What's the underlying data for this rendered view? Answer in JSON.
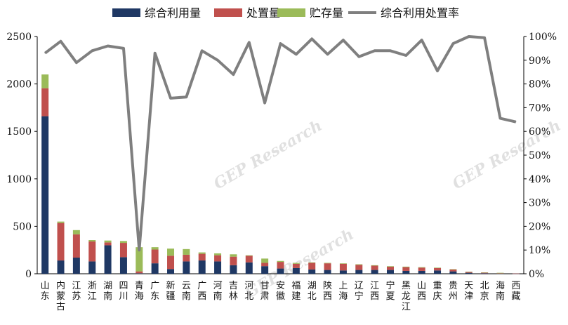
{
  "chart_data": {
    "type": "bar",
    "stacked": true,
    "combo_with_line": true,
    "categories": [
      "山东",
      "内蒙古",
      "江苏",
      "浙江",
      "湖南",
      "四川",
      "青海",
      "广东",
      "新疆",
      "云南",
      "广西",
      "河南",
      "吉林",
      "河北",
      "甘肃",
      "安徽",
      "福建",
      "湖北",
      "陕西",
      "上海",
      "辽宁",
      "江西",
      "宁夏",
      "黑龙江",
      "山西",
      "重庆",
      "贵州",
      "天津",
      "北京",
      "海南",
      "西藏"
    ],
    "series": [
      {
        "name": "综合利用量",
        "type": "bar",
        "axis": "left",
        "color": "#1f3864",
        "values": [
          1660,
          140,
          170,
          130,
          300,
          175,
          5,
          110,
          50,
          130,
          140,
          130,
          90,
          120,
          80,
          55,
          60,
          45,
          40,
          35,
          40,
          40,
          40,
          30,
          30,
          35,
          25,
          10,
          5,
          2,
          1
        ]
      },
      {
        "name": "处置量",
        "type": "bar",
        "axis": "left",
        "color": "#c0504d",
        "values": [
          295,
          395,
          245,
          210,
          30,
          150,
          20,
          145,
          140,
          70,
          70,
          65,
          90,
          70,
          35,
          70,
          45,
          70,
          70,
          70,
          55,
          45,
          35,
          40,
          35,
          25,
          20,
          10,
          8,
          3,
          1
        ]
      },
      {
        "name": "贮存量",
        "type": "bar",
        "axis": "left",
        "color": "#9bbb59",
        "values": [
          145,
          15,
          45,
          15,
          20,
          20,
          255,
          25,
          75,
          60,
          15,
          20,
          25,
          5,
          45,
          10,
          10,
          5,
          5,
          5,
          5,
          5,
          5,
          5,
          5,
          5,
          3,
          2,
          1,
          5,
          0
        ]
      },
      {
        "name": "综合利用处置率",
        "type": "line",
        "axis": "right",
        "color": "#7f7f7f",
        "values": [
          93,
          98,
          89,
          94,
          96,
          95,
          10,
          93,
          74,
          74.5,
          94,
          90,
          84,
          97.5,
          72,
          97,
          92.5,
          99,
          92.5,
          98.5,
          91.5,
          94,
          94,
          92,
          98.5,
          85.5,
          97,
          100,
          99.5,
          65.5,
          64
        ]
      }
    ],
    "left_axis": {
      "min": 0,
      "max": 2500,
      "ticks": [
        0,
        500,
        1000,
        1500,
        2000,
        2500
      ],
      "tick_labels": [
        "0",
        "500",
        "1000",
        "1500",
        "2000",
        "2500"
      ]
    },
    "right_axis": {
      "min": 0,
      "max": 100,
      "ticks": [
        0,
        10,
        20,
        30,
        40,
        50,
        60,
        70,
        80,
        90,
        100
      ],
      "tick_labels": [
        "0%",
        "10%",
        "20%",
        "30%",
        "40%",
        "50%",
        "60%",
        "70%",
        "80%",
        "90%",
        "100%"
      ]
    },
    "legend_position": "top-center",
    "grid": false,
    "watermark_text": "GEP Research"
  }
}
